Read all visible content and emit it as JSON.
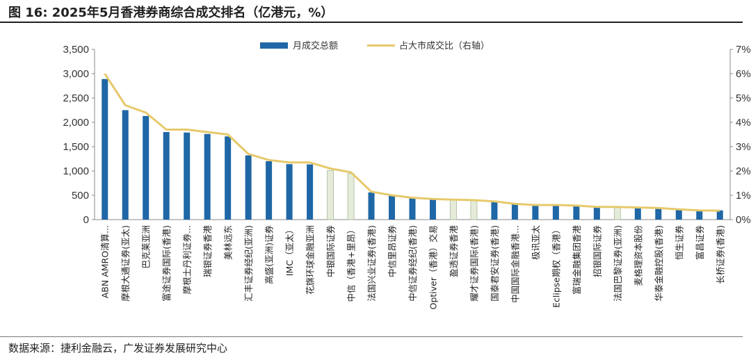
{
  "figure": {
    "title": "图  16:  2025年5月香港券商综合成交排名（亿港元，%）",
    "source": "数据来源：捷利金融云，广发证券发展研究中心"
  },
  "colors": {
    "bar": "#1f67a6",
    "bar_highlight": "#e4ecd9",
    "bar_highlight_border": "#a9b79a",
    "line": "#e6c96b",
    "axis": "#888888"
  },
  "chart_data": {
    "type": "bar",
    "combo_line": true,
    "categories": [
      "ABN AMRO清算...",
      "摩根大通证券(亚太)",
      "巴克莱亚洲",
      "富途证券国际(香港)",
      "摩根士丹利证券...",
      "瑞银证券香港",
      "美林远东",
      "汇丰证券经纪(亚洲)",
      "高盛(亚洲)证券",
      "IMC（亚太）",
      "花旗环球金融亚洲",
      "中银国际证券",
      "中信（香港+里昂）",
      "法国兴业证券(香港)",
      "中信里昂证券",
      "中信证券经纪(香港)",
      "Optiver（香港）交易",
      "盈透证券香港",
      "耀才证券国际(香港)",
      "国泰君安证券(香港)",
      "中国国际金融香港...",
      "极讯亚太",
      "Eclipse期权（香港）",
      "富瑞金融集团香港",
      "招银国际证券",
      "法国巴黎证券(亚洲)",
      "麦格理资本股份",
      "华泰金融控股(香港)",
      "恒生证券",
      "富昌证券",
      "长桥证券(香港)"
    ],
    "series": [
      {
        "name": "月成交总额",
        "type": "bar",
        "axis": "left",
        "values": [
          2890,
          2250,
          2130,
          1800,
          1790,
          1760,
          1710,
          1320,
          1200,
          1140,
          1135,
          1010,
          950,
          560,
          495,
          455,
          430,
          415,
          410,
          375,
          320,
          300,
          290,
          285,
          265,
          262,
          240,
          235,
          205,
          200,
          190
        ],
        "highlighted_indices": [
          11,
          12,
          17,
          18,
          25
        ]
      },
      {
        "name": "占大市成交比（右轴）",
        "type": "line",
        "axis": "right",
        "values": [
          6.0,
          4.7,
          4.4,
          3.7,
          3.7,
          3.6,
          3.5,
          2.7,
          2.45,
          2.35,
          2.35,
          2.1,
          1.95,
          1.15,
          1.0,
          0.9,
          0.85,
          0.82,
          0.8,
          0.75,
          0.65,
          0.6,
          0.6,
          0.58,
          0.52,
          0.52,
          0.5,
          0.48,
          0.42,
          0.38,
          0.37
        ]
      }
    ],
    "ylim": [
      0,
      3500
    ],
    "yticks": [
      "0",
      "500",
      "1,000",
      "1,500",
      "2,000",
      "2,500",
      "3,000",
      "3,500"
    ],
    "y2lim": [
      0,
      7
    ],
    "y2ticks": [
      "0%",
      "1%",
      "2%",
      "3%",
      "4%",
      "5%",
      "6%",
      "7%"
    ],
    "legend_position": "top-center",
    "grid": false
  }
}
